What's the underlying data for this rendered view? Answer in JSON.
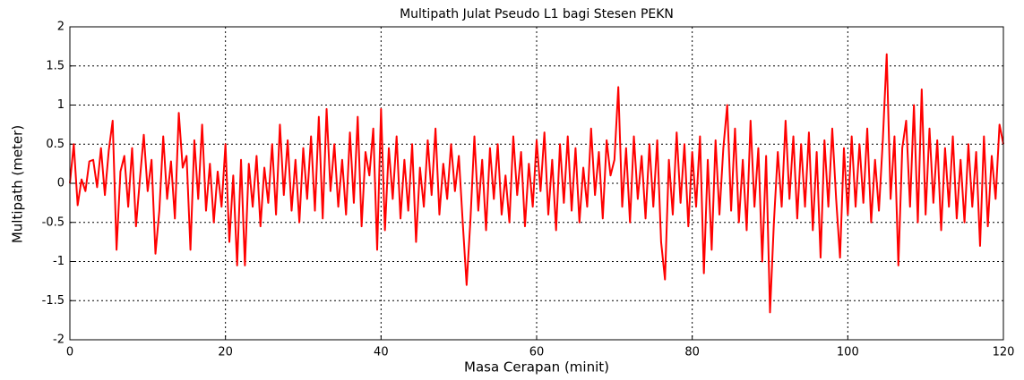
{
  "chart_data": {
    "type": "line",
    "title": "Multipath Julat Pseudo L1 bagi Stesen PEKN",
    "x_label": "Masa Cerapan (minit)",
    "y_label": "Multipath (meter)",
    "xlim": [
      0,
      120
    ],
    "xticks": [
      0,
      20,
      40,
      60,
      80,
      100,
      120
    ],
    "ylim": [
      -2,
      2
    ],
    "yticks": [
      -2,
      -1.5,
      -1,
      -0.5,
      0,
      0.5,
      1,
      1.5,
      2
    ],
    "grid": true,
    "x": [
      0,
      0.5,
      1,
      1.5,
      2,
      2.5,
      3,
      3.5,
      4,
      4.5,
      5,
      5.5,
      6,
      6.5,
      7,
      7.5,
      8,
      8.5,
      9,
      9.5,
      10,
      10.5,
      11,
      11.5,
      12,
      12.5,
      13,
      13.5,
      14,
      14.5,
      15,
      15.5,
      16,
      16.5,
      17,
      17.5,
      18,
      18.5,
      19,
      19.5,
      20,
      20.5,
      21,
      21.5,
      22,
      22.5,
      23,
      23.5,
      24,
      24.5,
      25,
      25.5,
      26,
      26.5,
      27,
      27.5,
      28,
      28.5,
      29,
      29.5,
      30,
      30.5,
      31,
      31.5,
      32,
      32.5,
      33,
      33.5,
      34,
      34.5,
      35,
      35.5,
      36,
      36.5,
      37,
      37.5,
      38,
      38.5,
      39,
      39.5,
      40,
      40.5,
      41,
      41.5,
      42,
      42.5,
      43,
      43.5,
      44,
      44.5,
      45,
      45.5,
      46,
      46.5,
      47,
      47.5,
      48,
      48.5,
      49,
      49.5,
      50,
      50.5,
      51,
      51.5,
      52,
      52.5,
      53,
      53.5,
      54,
      54.5,
      55,
      55.5,
      56,
      56.5,
      57,
      57.5,
      58,
      58.5,
      59,
      59.5,
      60,
      60.5,
      61,
      61.5,
      62,
      62.5,
      63,
      63.5,
      64,
      64.5,
      65,
      65.5,
      66,
      66.5,
      67,
      67.5,
      68,
      68.5,
      69,
      69.5,
      70,
      70.5,
      71,
      71.5,
      72,
      72.5,
      73,
      73.5,
      74,
      74.5,
      75,
      75.5,
      76,
      76.5,
      77,
      77.5,
      78,
      78.5,
      79,
      79.5,
      80,
      80.5,
      81,
      81.5,
      82,
      82.5,
      83,
      83.5,
      84,
      84.5,
      85,
      85.5,
      86,
      86.5,
      87,
      87.5,
      88,
      88.5,
      89,
      89.5,
      90,
      90.5,
      91,
      91.5,
      92,
      92.5,
      93,
      93.5,
      94,
      94.5,
      95,
      95.5,
      96,
      96.5,
      97,
      97.5,
      98,
      98.5,
      99,
      99.5,
      100,
      100.5,
      101,
      101.5,
      102,
      102.5,
      103,
      103.5,
      104,
      104.5,
      105,
      105.5,
      106,
      106.5,
      107,
      107.5,
      108,
      108.5,
      109,
      109.5,
      110,
      110.5,
      111,
      111.5,
      112,
      112.5,
      113,
      113.5,
      114,
      114.5,
      115,
      115.5,
      116,
      116.5,
      117,
      117.5,
      118,
      118.5,
      119,
      119.5,
      120
    ],
    "series": [
      {
        "color": "#ff0000",
        "values": [
          0,
          0.5,
          -0.28,
          0.05,
          -0.1,
          0.28,
          0.3,
          -0.05,
          0.45,
          -0.15,
          0.42,
          0.8,
          -0.85,
          0.15,
          0.35,
          -0.3,
          0.45,
          -0.55,
          0.05,
          0.62,
          -0.1,
          0.3,
          -0.9,
          -0.35,
          0.6,
          -0.2,
          0.28,
          -0.45,
          0.9,
          0.2,
          0.35,
          -0.85,
          0.55,
          -0.2,
          0.75,
          -0.35,
          0.25,
          -0.5,
          0.15,
          -0.3,
          0.5,
          -0.75,
          0.1,
          -1.05,
          0.3,
          -1.05,
          0.25,
          -0.3,
          0.35,
          -0.55,
          0.2,
          -0.25,
          0.5,
          -0.4,
          0.75,
          -0.15,
          0.55,
          -0.35,
          0.3,
          -0.5,
          0.45,
          -0.2,
          0.6,
          -0.35,
          0.85,
          -0.45,
          0.95,
          -0.1,
          0.5,
          -0.3,
          0.3,
          -0.4,
          0.65,
          -0.25,
          0.85,
          -0.55,
          0.4,
          0.1,
          0.7,
          -0.85,
          0.95,
          -0.6,
          0.45,
          -0.2,
          0.6,
          -0.45,
          0.3,
          -0.35,
          0.5,
          -0.75,
          0.2,
          -0.3,
          0.55,
          -0.15,
          0.7,
          -0.4,
          0.25,
          -0.2,
          0.5,
          -0.1,
          0.35,
          -0.5,
          -1.3,
          -0.45,
          0.6,
          -0.35,
          0.3,
          -0.6,
          0.45,
          -0.2,
          0.5,
          -0.4,
          0.1,
          -0.5,
          0.6,
          -0.15,
          0.4,
          -0.55,
          0.25,
          -0.3,
          0.55,
          -0.1,
          0.65,
          -0.4,
          0.3,
          -0.6,
          0.5,
          -0.25,
          0.6,
          -0.35,
          0.45,
          -0.5,
          0.2,
          -0.3,
          0.7,
          -0.15,
          0.4,
          -0.45,
          0.55,
          0.1,
          0.3,
          1.23,
          -0.3,
          0.45,
          -0.5,
          0.6,
          -0.2,
          0.35,
          -0.45,
          0.5,
          -0.3,
          0.55,
          -0.75,
          -1.23,
          0.3,
          -0.4,
          0.65,
          -0.25,
          0.5,
          -0.55,
          0.4,
          -0.3,
          0.6,
          -1.15,
          0.3,
          -0.85,
          0.55,
          -0.4,
          0.45,
          1.0,
          -0.35,
          0.7,
          -0.5,
          0.3,
          -0.6,
          0.8,
          -0.3,
          0.45,
          -1.0,
          0.35,
          -1.65,
          -0.5,
          0.4,
          -0.3,
          0.8,
          -0.2,
          0.6,
          -0.45,
          0.5,
          -0.3,
          0.65,
          -0.6,
          0.4,
          -0.95,
          0.55,
          -0.3,
          0.7,
          -0.2,
          -0.95,
          0.45,
          -0.4,
          0.6,
          -0.3,
          0.5,
          -0.25,
          0.7,
          -0.5,
          0.3,
          -0.35,
          0.55,
          1.65,
          -0.2,
          0.6,
          -1.05,
          0.45,
          0.8,
          -0.3,
          1.0,
          -0.5,
          1.2,
          -0.4,
          0.7,
          -0.25,
          0.55,
          -0.6,
          0.45,
          -0.3,
          0.6,
          -0.45,
          0.3,
          -0.5,
          0.5,
          -0.3,
          0.4,
          -0.8,
          0.6,
          -0.55,
          0.35,
          -0.2,
          0.75,
          0.5
        ]
      }
    ]
  }
}
